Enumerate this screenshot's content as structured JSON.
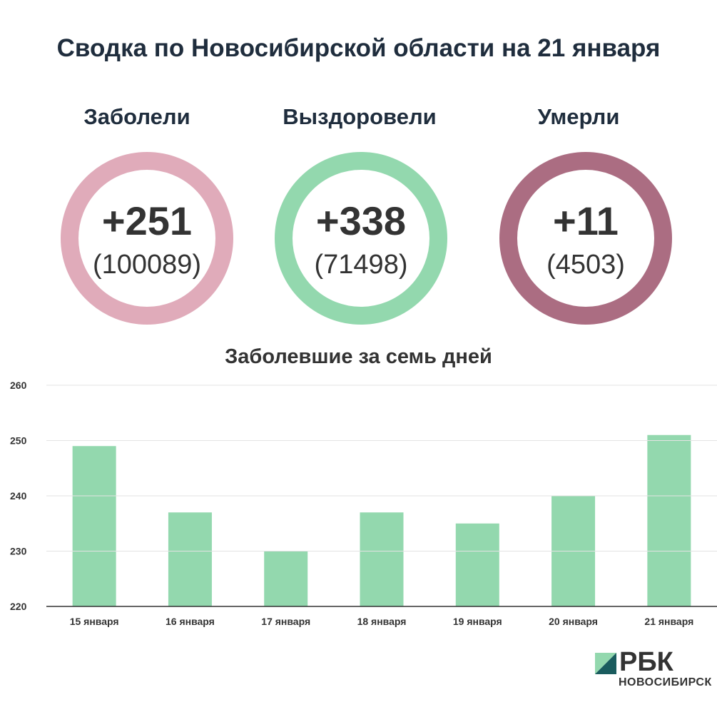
{
  "header": {
    "title": "Сводка по Новосибирской области на 21 января"
  },
  "stats": [
    {
      "label": "Заболели",
      "delta": "+251",
      "total": "(100089)",
      "color": "#e0abba"
    },
    {
      "label": "Выздоровели",
      "delta": "+338",
      "total": "(71498)",
      "color": "#93d8ae"
    },
    {
      "label": "Умерли",
      "delta": "+11",
      "total": "(4503)",
      "color": "#ab6d82"
    }
  ],
  "chart_data": {
    "type": "bar",
    "title": "Заболевшие за семь дней",
    "categories": [
      "15 января",
      "16 января",
      "17 января",
      "18 января",
      "19 января",
      "20 января",
      "21 января"
    ],
    "values": [
      249,
      237,
      230,
      237,
      235,
      240,
      251
    ],
    "ylim": [
      220,
      260
    ],
    "yticks": [
      220,
      230,
      240,
      250,
      260
    ],
    "grid": true,
    "bar_color": "#93d8ae",
    "xlabel": "",
    "ylabel": ""
  },
  "logo": {
    "brand": "РБК",
    "region": "НОВОСИБИРСК",
    "mark_color_light": "#93d8ae",
    "mark_color_dark": "#1a5c5e"
  }
}
